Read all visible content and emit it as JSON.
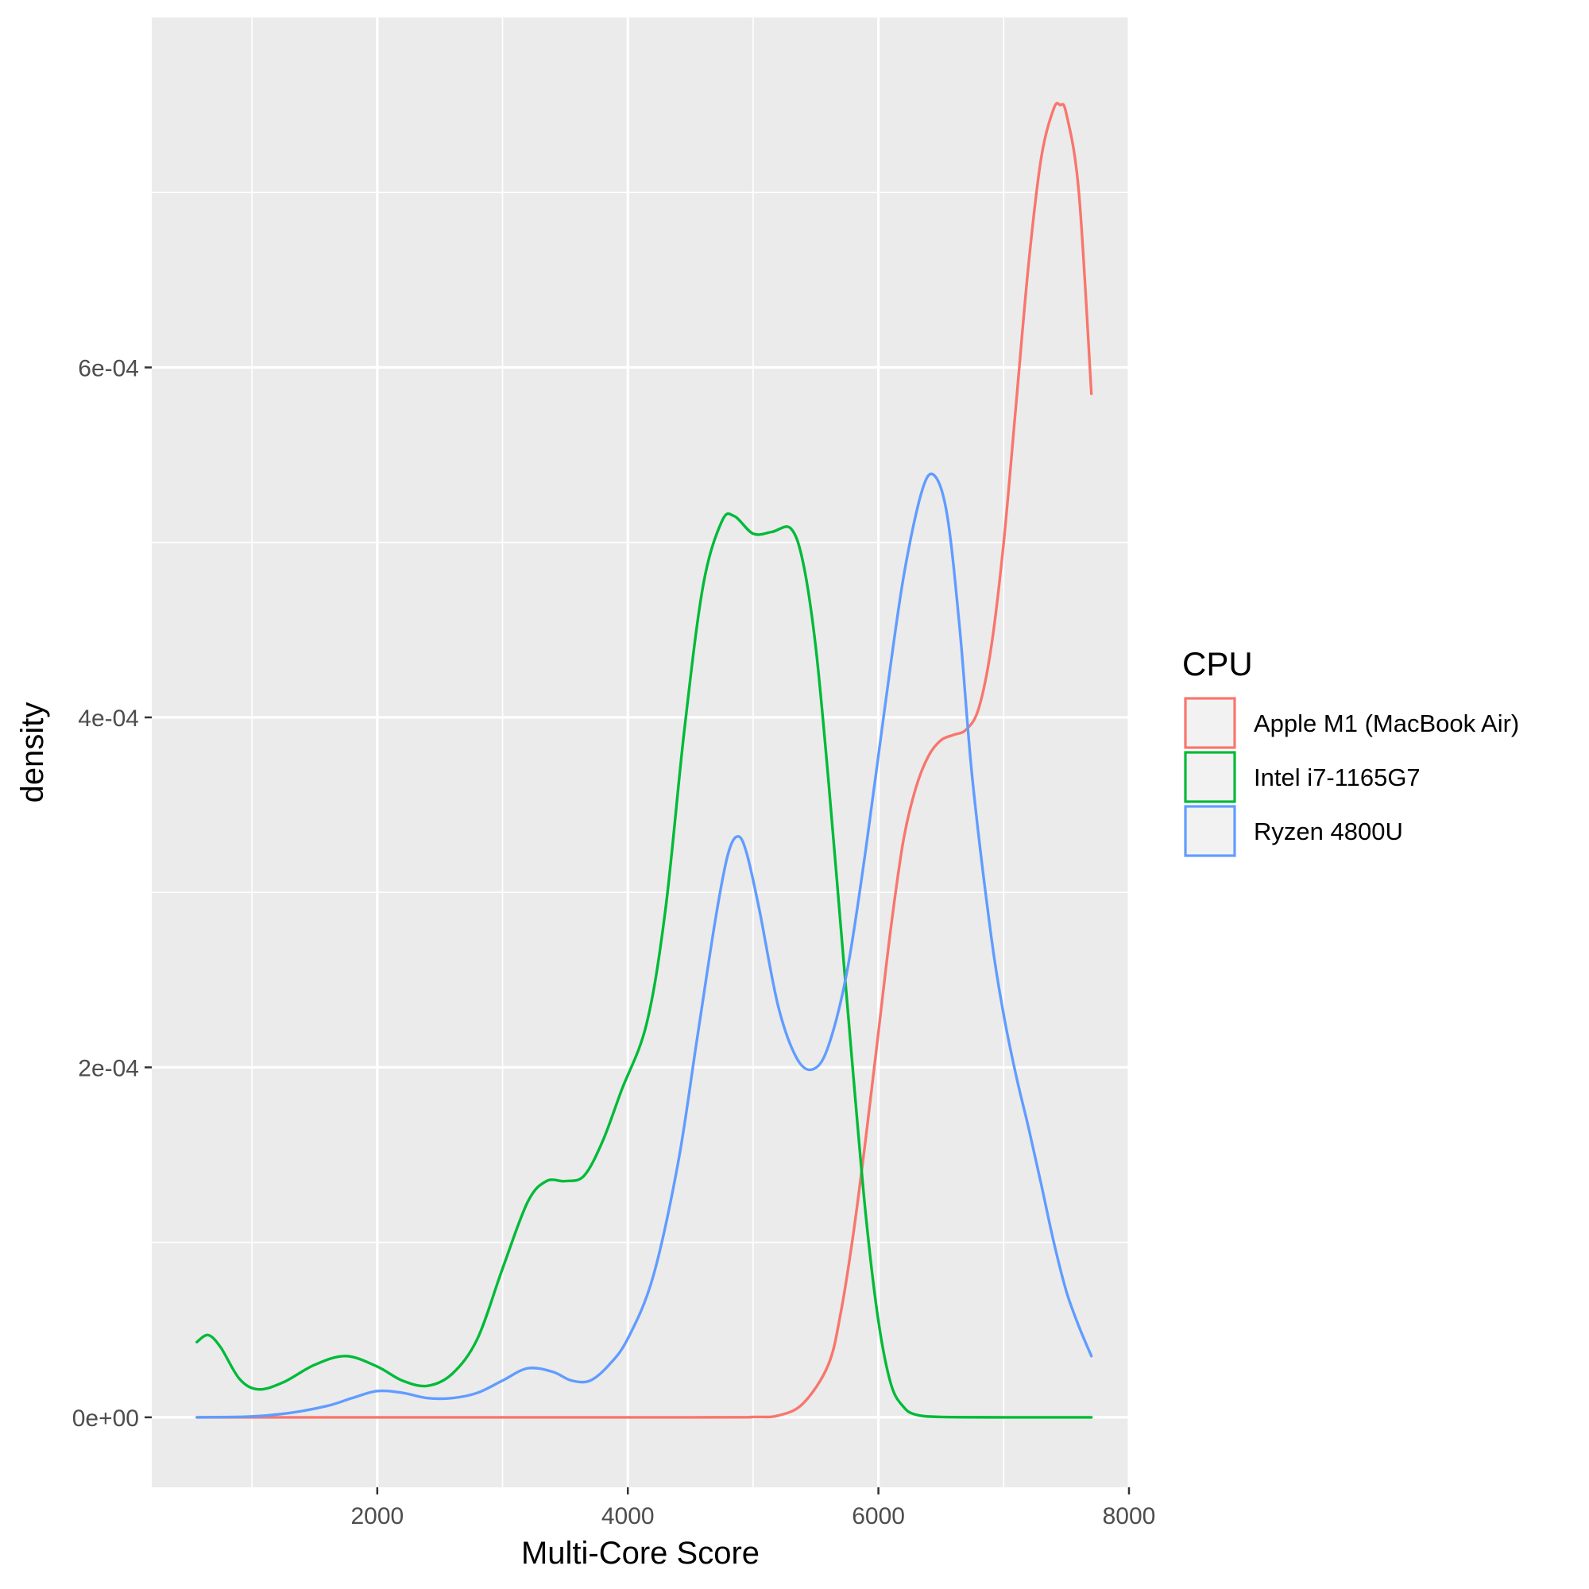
{
  "chart_data": {
    "type": "line",
    "title": "",
    "xlabel": "Multi-Core Score",
    "ylabel": "density",
    "xlim": [
      200,
      8000
    ],
    "ylim": [
      -4e-05,
      0.0008
    ],
    "x_ticks": [
      2000,
      4000,
      6000,
      8000
    ],
    "x_tick_labels": [
      "2000",
      "4000",
      "6000",
      "8000"
    ],
    "x_minor_ticks": [
      1000,
      3000,
      5000,
      7000
    ],
    "y_ticks": [
      0,
      0.0002,
      0.0004,
      0.0006
    ],
    "y_tick_labels": [
      "0e+00",
      "2e-04",
      "4e-04",
      "6e-04"
    ],
    "y_minor_ticks": [
      0.0001,
      0.0003,
      0.0005,
      0.0007
    ],
    "grid": true,
    "legend": {
      "title": "CPU",
      "position": "right"
    },
    "series": [
      {
        "name": "Apple M1 (MacBook Air)",
        "color": "#F8766D",
        "points": [
          [
            560,
            0
          ],
          [
            4500,
            0
          ],
          [
            5000,
            2e-07
          ],
          [
            5200,
            1e-06
          ],
          [
            5400,
            8e-06
          ],
          [
            5600,
            3e-05
          ],
          [
            5700,
            6e-05
          ],
          [
            5800,
            0.000105
          ],
          [
            5900,
            0.00016
          ],
          [
            6000,
            0.00022
          ],
          [
            6100,
            0.00028
          ],
          [
            6200,
            0.00033
          ],
          [
            6300,
            0.00036
          ],
          [
            6400,
            0.000378
          ],
          [
            6500,
            0.000387
          ],
          [
            6600,
            0.00039
          ],
          [
            6700,
            0.000393
          ],
          [
            6800,
            0.000405
          ],
          [
            6900,
            0.00044
          ],
          [
            7000,
            0.0005
          ],
          [
            7100,
            0.00058
          ],
          [
            7200,
            0.00066
          ],
          [
            7300,
            0.00072
          ],
          [
            7400,
            0.000748
          ],
          [
            7450,
            0.00075
          ],
          [
            7500,
            0.000745
          ],
          [
            7600,
            0.0007
          ],
          [
            7700,
            0.000585
          ]
        ]
      },
      {
        "name": "Intel i7-1165G7",
        "color": "#00BA38",
        "points": [
          [
            560,
            4.3e-05
          ],
          [
            650,
            4.7e-05
          ],
          [
            750,
            4e-05
          ],
          [
            900,
            2.2e-05
          ],
          [
            1050,
            1.6e-05
          ],
          [
            1250,
            2e-05
          ],
          [
            1500,
            3e-05
          ],
          [
            1750,
            3.5e-05
          ],
          [
            2000,
            2.9e-05
          ],
          [
            2200,
            2.1e-05
          ],
          [
            2400,
            1.8e-05
          ],
          [
            2600,
            2.5e-05
          ],
          [
            2800,
            4.5e-05
          ],
          [
            3000,
            8.5e-05
          ],
          [
            3200,
            0.000123
          ],
          [
            3350,
            0.000135
          ],
          [
            3500,
            0.000135
          ],
          [
            3650,
            0.000138
          ],
          [
            3800,
            0.000158
          ],
          [
            3950,
            0.000187
          ],
          [
            4150,
            0.000225
          ],
          [
            4300,
            0.00029
          ],
          [
            4450,
            0.000392
          ],
          [
            4600,
            0.000475
          ],
          [
            4750,
            0.000512
          ],
          [
            4850,
            0.000515
          ],
          [
            5000,
            0.000505
          ],
          [
            5150,
            0.000506
          ],
          [
            5300,
            0.000508
          ],
          [
            5400,
            0.000488
          ],
          [
            5500,
            0.00044
          ],
          [
            5600,
            0.000365
          ],
          [
            5700,
            0.00028
          ],
          [
            5800,
            0.000195
          ],
          [
            5900,
            0.000115
          ],
          [
            6000,
            5.5e-05
          ],
          [
            6100,
            1.9e-05
          ],
          [
            6200,
            6e-06
          ],
          [
            6300,
            1.5e-06
          ],
          [
            6500,
            2e-07
          ],
          [
            7000,
            0
          ],
          [
            7700,
            0
          ]
        ]
      },
      {
        "name": "Ryzen 4800U",
        "color": "#619CFF",
        "points": [
          [
            560,
            0
          ],
          [
            1000,
            5e-07
          ],
          [
            1300,
            2.5e-06
          ],
          [
            1600,
            6.5e-06
          ],
          [
            1800,
            1.1e-05
          ],
          [
            2000,
            1.5e-05
          ],
          [
            2200,
            1.4e-05
          ],
          [
            2400,
            1.1e-05
          ],
          [
            2600,
            1.1e-05
          ],
          [
            2800,
            1.4e-05
          ],
          [
            3000,
            2.1e-05
          ],
          [
            3200,
            2.8e-05
          ],
          [
            3400,
            2.6e-05
          ],
          [
            3550,
            2.1e-05
          ],
          [
            3700,
            2.1e-05
          ],
          [
            3850,
            3e-05
          ],
          [
            4000,
            4.5e-05
          ],
          [
            4200,
            8e-05
          ],
          [
            4400,
            0.000145
          ],
          [
            4550,
            0.000215
          ],
          [
            4700,
            0.000285
          ],
          [
            4800,
            0.000322
          ],
          [
            4880,
            0.000332
          ],
          [
            4950,
            0.000322
          ],
          [
            5050,
            0.00029
          ],
          [
            5200,
            0.000235
          ],
          [
            5350,
            0.000205
          ],
          [
            5480,
            0.000199
          ],
          [
            5600,
            0.000212
          ],
          [
            5750,
            0.000255
          ],
          [
            5900,
            0.000325
          ],
          [
            6050,
            0.000405
          ],
          [
            6200,
            0.00048
          ],
          [
            6350,
            0.00053
          ],
          [
            6450,
            0.000538
          ],
          [
            6550,
            0.000515
          ],
          [
            6650,
            0.00045
          ],
          [
            6750,
            0.000365
          ],
          [
            6900,
            0.000275
          ],
          [
            7000,
            0.00023
          ],
          [
            7100,
            0.000195
          ],
          [
            7200,
            0.000165
          ],
          [
            7300,
            0.000133
          ],
          [
            7400,
            0.0001
          ],
          [
            7500,
            7.2e-05
          ],
          [
            7600,
            5.2e-05
          ],
          [
            7700,
            3.5e-05
          ]
        ]
      }
    ]
  }
}
